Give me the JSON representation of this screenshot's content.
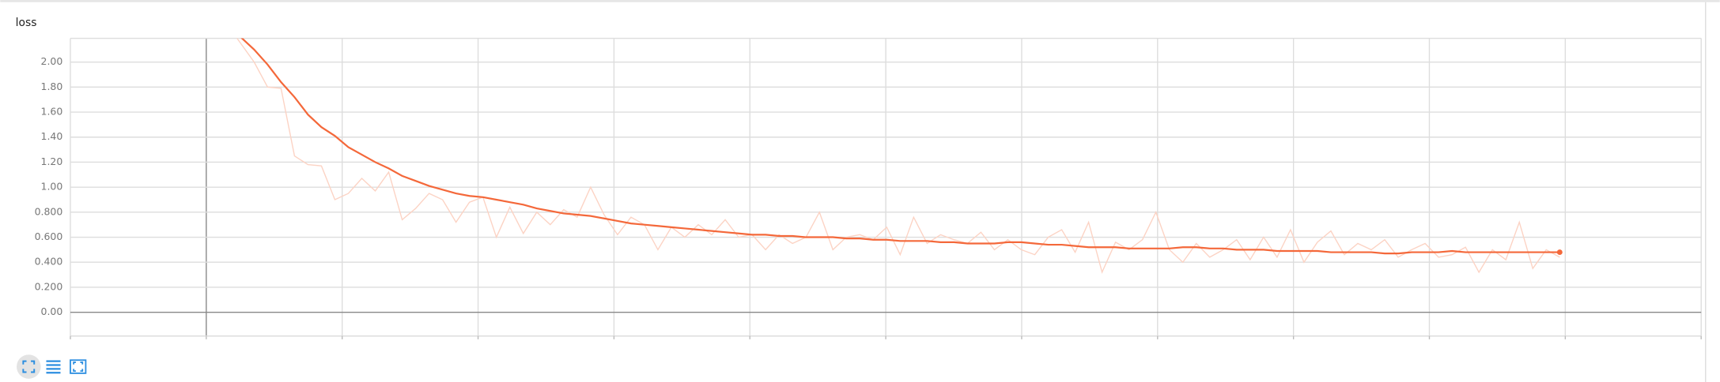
{
  "chart_data": {
    "type": "line",
    "title": "loss",
    "ylim": [
      -0.19,
      2.19
    ],
    "yticks": [
      {
        "value": 0,
        "label": "0.00"
      },
      {
        "value": 0.2,
        "label": "0.200"
      },
      {
        "value": 0.4,
        "label": "0.400"
      },
      {
        "value": 0.6,
        "label": "0.600"
      },
      {
        "value": 0.8,
        "label": "0.800"
      },
      {
        "value": 1,
        "label": "1.00"
      },
      {
        "value": 1.2,
        "label": "1.20"
      },
      {
        "value": 1.4,
        "label": "1.40"
      },
      {
        "value": 1.6,
        "label": "1.60"
      },
      {
        "value": 1.8,
        "label": "1.80"
      },
      {
        "value": 2,
        "label": "2.00"
      }
    ],
    "grid": true,
    "series": [
      {
        "color": "#fcd3c4",
        "values": [
          2.3,
          2.15,
          2.0,
          1.8,
          1.79,
          1.25,
          1.18,
          1.17,
          0.9,
          0.95,
          1.07,
          0.97,
          1.12,
          0.74,
          0.83,
          0.95,
          0.9,
          0.72,
          0.88,
          0.92,
          0.6,
          0.84,
          0.63,
          0.8,
          0.7,
          0.82,
          0.76,
          1.0,
          0.78,
          0.62,
          0.76,
          0.7,
          0.5,
          0.68,
          0.6,
          0.7,
          0.62,
          0.74,
          0.6,
          0.62,
          0.5,
          0.62,
          0.55,
          0.6,
          0.8,
          0.5,
          0.6,
          0.62,
          0.58,
          0.68,
          0.46,
          0.76,
          0.55,
          0.62,
          0.58,
          0.55,
          0.64,
          0.5,
          0.58,
          0.5,
          0.46,
          0.6,
          0.66,
          0.48,
          0.72,
          0.32,
          0.56,
          0.5,
          0.58,
          0.8,
          0.5,
          0.4,
          0.55,
          0.44,
          0.5,
          0.58,
          0.42,
          0.6,
          0.44,
          0.66,
          0.4,
          0.56,
          0.65,
          0.46,
          0.55,
          0.5,
          0.58,
          0.44,
          0.5,
          0.55,
          0.44,
          0.46,
          0.52,
          0.32,
          0.5,
          0.42,
          0.72,
          0.35,
          0.5,
          0.44
        ]
      },
      {
        "color": "#f4683a",
        "values": [
          2.35,
          2.2,
          2.1,
          1.98,
          1.84,
          1.72,
          1.58,
          1.48,
          1.41,
          1.32,
          1.26,
          1.2,
          1.15,
          1.09,
          1.05,
          1.01,
          0.98,
          0.95,
          0.93,
          0.92,
          0.9,
          0.88,
          0.86,
          0.83,
          0.81,
          0.79,
          0.78,
          0.77,
          0.75,
          0.73,
          0.71,
          0.7,
          0.69,
          0.68,
          0.67,
          0.66,
          0.65,
          0.64,
          0.63,
          0.62,
          0.62,
          0.61,
          0.61,
          0.6,
          0.6,
          0.6,
          0.59,
          0.59,
          0.58,
          0.58,
          0.57,
          0.57,
          0.57,
          0.56,
          0.56,
          0.55,
          0.55,
          0.55,
          0.56,
          0.56,
          0.55,
          0.54,
          0.54,
          0.53,
          0.52,
          0.52,
          0.52,
          0.51,
          0.51,
          0.51,
          0.51,
          0.52,
          0.52,
          0.51,
          0.51,
          0.5,
          0.5,
          0.5,
          0.49,
          0.49,
          0.49,
          0.49,
          0.48,
          0.48,
          0.48,
          0.48,
          0.47,
          0.47,
          0.48,
          0.48,
          0.48,
          0.49,
          0.48,
          0.48,
          0.48,
          0.48,
          0.48,
          0.48,
          0.48,
          0.48
        ]
      }
    ]
  }
}
